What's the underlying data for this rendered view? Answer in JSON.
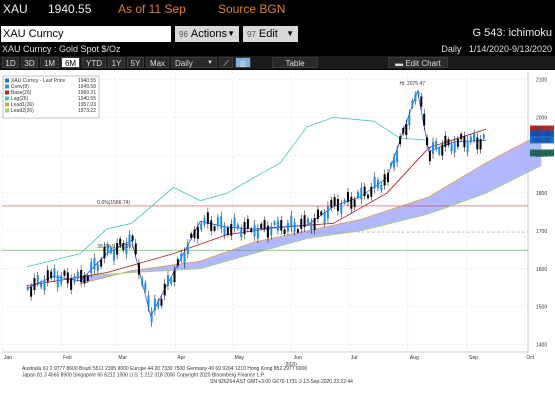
{
  "header": {
    "symbol": "XAU",
    "price": "1940.55",
    "as_of": "As of 11 Sep",
    "source": "Source BGN"
  },
  "command_bar": {
    "security": "XAU Curncy",
    "actions_num": "96",
    "actions_label": "Actions",
    "edit_num": "97",
    "edit_label": "Edit",
    "page_code": "G 543: ichimoku"
  },
  "subtitle": {
    "left": "XAU Curncy : Gold Spot  $/Oz",
    "period": "Daily",
    "range": "1/14/2020-9/13/2020"
  },
  "toolbar": {
    "periods": [
      "1D",
      "3D",
      "1M",
      "6M",
      "YTD",
      "1Y",
      "5Y",
      "Max"
    ],
    "selected_period": "6M",
    "frequency": "Daily",
    "table_label": "Table",
    "edit_chart_label": "Edit Chart"
  },
  "legend": {
    "items": [
      {
        "label": "XAU Curncy - Last Price",
        "value": "1940.55",
        "color": "#1f77c8"
      },
      {
        "label": "Conv(9)",
        "value": "1949.58",
        "color": "#3a8fd8"
      },
      {
        "label": "Base(26)",
        "value": "1969.31",
        "color": "#b8262d"
      },
      {
        "label": "Lag(26)",
        "value": "1940.55",
        "color": "#40c8c0"
      },
      {
        "label": "Lead1(26)",
        "value": "1957.03",
        "color": "#e59a4a"
      },
      {
        "label": "Lead2(26)",
        "value": "1873.22",
        "color": "#9ad86a"
      }
    ]
  },
  "annotations": {
    "high": "Hi: 2075.47",
    "fib50": "0.0%(1566.74)",
    "fib382": "38.2%(1649.09)",
    "year": "2020"
  },
  "price_tags": [
    "1969.31",
    "1957.03",
    "1940.55",
    "1916.62"
  ],
  "footer": {
    "line1": "Australia 61 2 9777 8600 Brazil 5511 2395 9000 Europe 44 20 7330 7500 Germany 49 69 9204 1210 Hong Kong 852 2977 6000",
    "line2": "Japan 81 3 4565 8900        Singapore 65 6212 1000       U.S. 1 212 318 2000        Copyright 2020 Bloomberg Finance L.P.",
    "line3": "SN 926264 AST  GMT+3:00 G676-1731-3 13-Sep-2020 23:22:44"
  },
  "colors": {
    "price": "#1a3fe0",
    "cloud": "#aab0ff",
    "base": "#b8262d",
    "lag": "#40c8c0",
    "lead1": "#e59a4a",
    "lead2": "#9ad86a",
    "accent": "#d9822b"
  },
  "chart_data": {
    "type": "line",
    "title": "",
    "xlabel": "2020",
    "ylabel": "",
    "x_ticks": [
      "Jan",
      "Feb",
      "Mar",
      "Apr",
      "May",
      "Jun",
      "Jul",
      "Aug",
      "Sep",
      "Oct"
    ],
    "y_ticks": [
      1400,
      1500,
      1600,
      1700,
      1800,
      1900,
      2000,
      2100
    ],
    "ylim": [
      1380,
      2120
    ],
    "grid": true,
    "series": [
      {
        "name": "XAU Curncy - Last Price",
        "x": [
          "2020-01-14",
          "2020-01-28",
          "2020-02-11",
          "2020-02-25",
          "2020-03-09",
          "2020-03-19",
          "2020-03-31",
          "2020-04-14",
          "2020-04-28",
          "2020-05-12",
          "2020-05-26",
          "2020-06-09",
          "2020-06-23",
          "2020-07-07",
          "2020-07-21",
          "2020-08-06",
          "2020-08-12",
          "2020-08-25",
          "2020-09-11"
        ],
        "values": [
          1548,
          1580,
          1568,
          1640,
          1675,
          1475,
          1590,
          1725,
          1710,
          1705,
          1710,
          1715,
          1765,
          1790,
          1840,
          2070,
          1910,
          1935,
          1940
        ]
      },
      {
        "name": "Base(26)",
        "x": [
          "2020-01-14",
          "2020-02-25",
          "2020-03-31",
          "2020-04-28",
          "2020-05-26",
          "2020-06-23",
          "2020-07-21",
          "2020-08-12",
          "2020-09-11"
        ],
        "values": [
          1555,
          1590,
          1640,
          1690,
          1710,
          1720,
          1800,
          1920,
          1969
        ]
      },
      {
        "name": "Lag(26)",
        "x": [
          "2020-01-14",
          "2020-02-11",
          "2020-02-25",
          "2020-03-09",
          "2020-03-31",
          "2020-04-14",
          "2020-04-28",
          "2020-05-26",
          "2020-06-09",
          "2020-06-23",
          "2020-07-14",
          "2020-07-28",
          "2020-08-12"
        ],
        "values": [
          1605,
          1640,
          1705,
          1720,
          1815,
          1780,
          1800,
          1880,
          1975,
          2000,
          1990,
          1945,
          1940
        ]
      },
      {
        "name": "Lead1(26)",
        "x": [
          "2020-02-11",
          "2020-03-09",
          "2020-04-14",
          "2020-05-12",
          "2020-06-09",
          "2020-07-07",
          "2020-08-12",
          "2020-09-11",
          "2020-10-10"
        ],
        "values": [
          1560,
          1595,
          1620,
          1670,
          1700,
          1730,
          1790,
          1880,
          1957
        ]
      },
      {
        "name": "Lead2(26)",
        "x": [
          "2020-02-11",
          "2020-03-09",
          "2020-04-14",
          "2020-05-12",
          "2020-06-09",
          "2020-07-07",
          "2020-08-12",
          "2020-09-11",
          "2020-10-10"
        ],
        "values": [
          1580,
          1590,
          1600,
          1640,
          1680,
          1700,
          1745,
          1800,
          1873
        ]
      }
    ]
  }
}
